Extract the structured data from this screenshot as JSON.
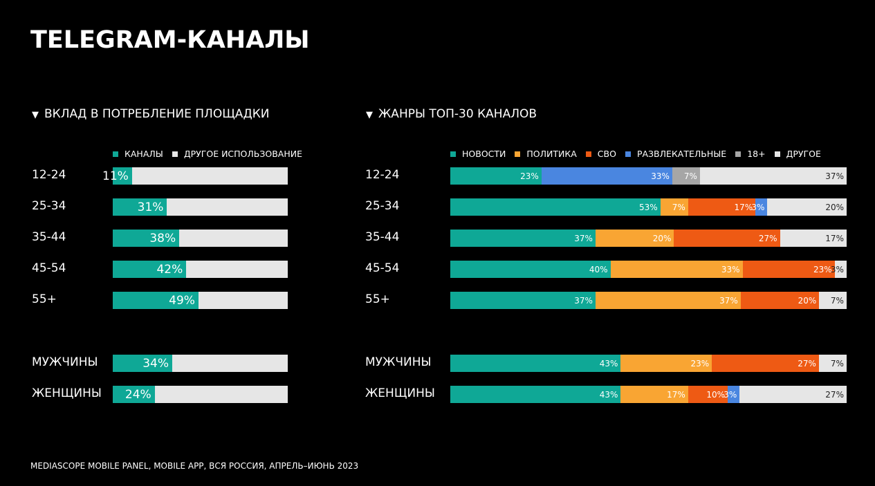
{
  "page": {
    "title": "TELEGRAM-КАНАЛЫ",
    "source": "MEDIASCOPE MOBILE PANEL, MOBILE APP, ВСЯ РОССИЯ, АПРЕЛЬ–ИЮНЬ 2023"
  },
  "left": {
    "heading": "ВКЛАД В ПОТРЕБЛЕНИЕ ПЛОЩАДКИ",
    "legend": [
      {
        "label": "КАНАЛЫ",
        "color": "#0fa896"
      },
      {
        "label": "ДРУГОЕ ИСПОЛЬЗОВАНИЕ",
        "color": "#e6e6e6"
      }
    ]
  },
  "right": {
    "heading": "ЖАНРЫ ТОП-30 КАНАЛОВ",
    "legend": [
      {
        "label": "НОВОСТИ",
        "color": "#0fa896"
      },
      {
        "label": "ПОЛИТИКА",
        "color": "#f9a533"
      },
      {
        "label": "СВО",
        "color": "#ee5a14"
      },
      {
        "label": "РАЗВЛЕКАТЕЛЬНЫЕ",
        "color": "#4a86e0"
      },
      {
        "label": "18+",
        "color": "#a6a6a6"
      },
      {
        "label": "ДРУГОЕ",
        "color": "#e6e6e6"
      }
    ]
  },
  "chart_data": [
    {
      "type": "bar",
      "title": "ВКЛАД В ПОТРЕБЛЕНИЕ ПЛОЩАДКИ",
      "stacked": true,
      "orientation": "horizontal",
      "categories": [
        "12-24",
        "25-34",
        "35-44",
        "45-54",
        "55+",
        "МУЖЧИНЫ",
        "ЖЕНЩИНЫ"
      ],
      "series": [
        {
          "name": "КАНАЛЫ",
          "color": "#0fa896",
          "values": [
            11,
            31,
            38,
            42,
            49,
            34,
            24
          ],
          "labels": [
            "11%",
            "31%",
            "38%",
            "42%",
            "49%",
            "34%",
            "24%"
          ]
        },
        {
          "name": "ДРУГОЕ ИСПОЛЬЗОВАНИЕ",
          "color": "#e6e6e6",
          "values": [
            89,
            69,
            62,
            58,
            51,
            66,
            76
          ]
        }
      ],
      "xlim": [
        0,
        100
      ]
    },
    {
      "type": "bar",
      "title": "ЖАНРЫ ТОП-30 КАНАЛОВ",
      "stacked": true,
      "orientation": "horizontal",
      "categories": [
        "12-24",
        "25-34",
        "35-44",
        "45-54",
        "55+",
        "МУЖЧИНЫ",
        "ЖЕНЩИНЫ"
      ],
      "series": [
        {
          "name": "НОВОСТИ",
          "color": "#0fa896",
          "values": [
            23,
            53,
            37,
            40,
            37,
            43,
            43
          ],
          "labels": [
            "23%",
            "53%",
            "37%",
            "40%",
            "37%",
            "43%",
            "43%"
          ]
        },
        {
          "name": "ПОЛИТИКА",
          "color": "#f9a533",
          "values": [
            0,
            7,
            20,
            33,
            37,
            23,
            17
          ],
          "labels": [
            "",
            "7%",
            "20%",
            "33%",
            "37%",
            "23%",
            "17%"
          ]
        },
        {
          "name": "СВО",
          "color": "#ee5a14",
          "values": [
            0,
            17,
            27,
            23,
            20,
            27,
            10
          ],
          "labels": [
            "",
            "17%",
            "27%",
            "23%",
            "20%",
            "27%",
            "10%"
          ]
        },
        {
          "name": "РАЗВЛЕКАТЕЛЬНЫЕ",
          "color": "#4a86e0",
          "values": [
            33,
            3,
            0,
            0,
            0,
            0,
            3
          ],
          "labels": [
            "33%",
            "3%",
            "",
            "",
            "",
            "",
            "3%"
          ]
        },
        {
          "name": "18+",
          "color": "#a6a6a6",
          "values": [
            7,
            0,
            0,
            0,
            0,
            0,
            0
          ],
          "labels": [
            "7%",
            "",
            "",
            "",
            "",
            "",
            ""
          ]
        },
        {
          "name": "ДРУГОЕ",
          "color": "#e6e6e6",
          "values": [
            37,
            20,
            17,
            3,
            7,
            7,
            27
          ],
          "labels": [
            "37%",
            "20%",
            "17%",
            "3%",
            "7%",
            "7%",
            "27%"
          ]
        }
      ],
      "xlim": [
        0,
        100
      ]
    }
  ]
}
